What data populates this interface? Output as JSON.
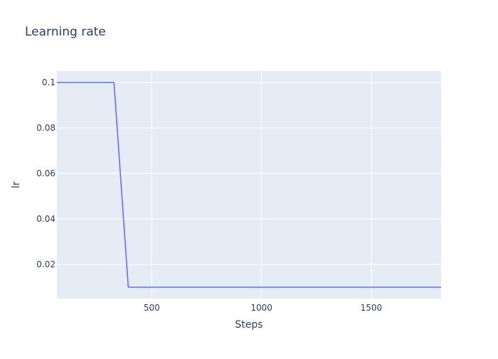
{
  "chart_data": {
    "type": "line",
    "title": "Learning rate",
    "xlabel": "Steps",
    "ylabel": "lr",
    "xlim": [
      68,
      1818
    ],
    "ylim": [
      0.005,
      0.105
    ],
    "x_ticks": [
      500,
      1000,
      1500
    ],
    "x_tick_labels": [
      "500",
      "1000",
      "1500"
    ],
    "y_ticks": [
      0.02,
      0.04,
      0.06,
      0.08,
      0.1
    ],
    "y_tick_labels": [
      "0.02",
      "0.04",
      "0.06",
      "0.08",
      "0.1"
    ],
    "grid": true,
    "legend": "none",
    "colors": {
      "line": "#636efa",
      "plot_background": "#e5ecf6",
      "grid": "#ffffff",
      "text": "#2a3f5f"
    },
    "series": [
      {
        "x": [
          68,
          328,
          393,
          1818
        ],
        "y": [
          0.1,
          0.1,
          0.01,
          0.01
        ]
      }
    ]
  }
}
